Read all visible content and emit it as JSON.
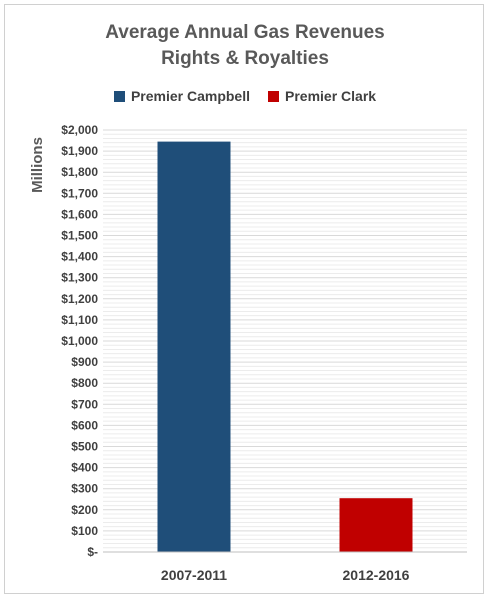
{
  "chart_data": {
    "type": "bar",
    "title": "Average Annual Gas Revenues",
    "subtitle": "Rights & Royalties",
    "ylabel": "Millions",
    "xlabel": "",
    "categories": [
      "2007-2011",
      "2012-2016"
    ],
    "series": [
      {
        "name": "Premier Campbell",
        "color": "#1f4e79",
        "values": [
          1945,
          null
        ]
      },
      {
        "name": "Premier Clark",
        "color": "#c00000",
        "values": [
          null,
          255
        ]
      }
    ],
    "ylim": [
      0,
      2000
    ],
    "y_ticks": [
      0,
      100,
      200,
      300,
      400,
      500,
      600,
      700,
      800,
      900,
      1000,
      1100,
      1200,
      1300,
      1400,
      1500,
      1600,
      1700,
      1800,
      1900,
      2000
    ],
    "y_tick_labels": [
      "$-",
      "$100",
      "$200",
      "$300",
      "$400",
      "$500",
      "$600",
      "$700",
      "$800",
      "$900",
      "$1,000",
      "$1,100",
      "$1,200",
      "$1,300",
      "$1,400",
      "$1,500",
      "$1,600",
      "$1,700",
      "$1,800",
      "$1,900",
      "$2,000"
    ],
    "grid": true,
    "legend_position": "top"
  }
}
